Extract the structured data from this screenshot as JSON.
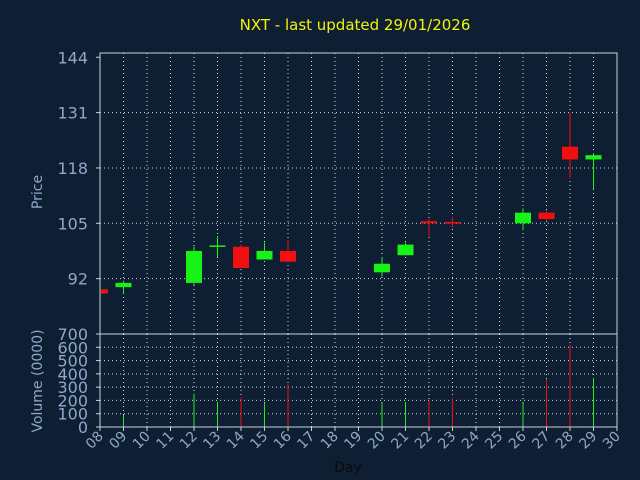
{
  "chart_data": {
    "type": "candlestick",
    "title": "NXT - last updated 29/01/2026",
    "xlabel": "Day",
    "colors": {
      "background": "#0f1f33",
      "title": "#f3f30a",
      "axis_text": "#8fa8c8",
      "xlabel": "#0a0a0a",
      "frame": "#c8d2dc",
      "grid": "#d0d8e0",
      "up": "#17f317",
      "down": "#f30f0f"
    },
    "x_ticks": [
      "08",
      "09",
      "10",
      "11",
      "12",
      "13",
      "14",
      "15",
      "16",
      "17",
      "18",
      "19",
      "20",
      "21",
      "22",
      "23",
      "24",
      "25",
      "26",
      "27",
      "28",
      "29",
      "30"
    ],
    "price_panel": {
      "ylabel": "Price",
      "ylim": [
        79,
        145
      ],
      "y_ticks": [
        92,
        105,
        118,
        131,
        144
      ],
      "grid": true,
      "candles": [
        {
          "day": 8,
          "open": 89.5,
          "close": 88.5,
          "high": 89.5,
          "low": 88.5
        },
        {
          "day": 9,
          "open": 90.0,
          "close": 91.0,
          "high": 91.5,
          "low": 88.5
        },
        {
          "day": 12,
          "open": 91.0,
          "close": 98.5,
          "high": 99.5,
          "low": 90.5
        },
        {
          "day": 13,
          "open": 99.5,
          "close": 99.8,
          "high": 102.0,
          "low": 97.0
        },
        {
          "day": 14,
          "open": 99.5,
          "close": 94.5,
          "high": 100.0,
          "low": 94.5
        },
        {
          "day": 15,
          "open": 96.5,
          "close": 98.5,
          "high": 100.5,
          "low": 96.5
        },
        {
          "day": 16,
          "open": 98.5,
          "close": 96.0,
          "high": 101.0,
          "low": 96.0
        },
        {
          "day": 20,
          "open": 93.5,
          "close": 95.5,
          "high": 97.0,
          "low": 92.5
        },
        {
          "day": 21,
          "open": 97.5,
          "close": 100.0,
          "high": 100.5,
          "low": 97.5
        },
        {
          "day": 22,
          "open": 105.5,
          "close": 105.0,
          "high": 106.0,
          "low": 102.0
        },
        {
          "day": 23,
          "open": 105.3,
          "close": 105.0,
          "high": 106.5,
          "low": 104.0
        },
        {
          "day": 26,
          "open": 105.0,
          "close": 107.5,
          "high": 108.5,
          "low": 103.5
        },
        {
          "day": 27,
          "open": 107.5,
          "close": 106.0,
          "high": 108.0,
          "low": 105.5
        },
        {
          "day": 28,
          "open": 123.0,
          "close": 120.0,
          "high": 131.0,
          "low": 115.5
        },
        {
          "day": 29,
          "open": 120.0,
          "close": 121.0,
          "high": 121.5,
          "low": 113.0
        }
      ]
    },
    "volume_panel": {
      "ylabel": "Volume (0000)",
      "ylim": [
        0,
        700
      ],
      "y_ticks": [
        0,
        100,
        200,
        300,
        400,
        500,
        600,
        700
      ],
      "grid": true,
      "bars": [
        {
          "day": 9,
          "value": 90,
          "dir": "up"
        },
        {
          "day": 12,
          "value": 250,
          "dir": "up"
        },
        {
          "day": 13,
          "value": 190,
          "dir": "up"
        },
        {
          "day": 14,
          "value": 220,
          "dir": "down"
        },
        {
          "day": 15,
          "value": 180,
          "dir": "up"
        },
        {
          "day": 16,
          "value": 320,
          "dir": "down"
        },
        {
          "day": 20,
          "value": 180,
          "dir": "up"
        },
        {
          "day": 21,
          "value": 190,
          "dir": "up"
        },
        {
          "day": 22,
          "value": 200,
          "dir": "down"
        },
        {
          "day": 23,
          "value": 220,
          "dir": "down"
        },
        {
          "day": 26,
          "value": 180,
          "dir": "up"
        },
        {
          "day": 27,
          "value": 360,
          "dir": "down"
        },
        {
          "day": 28,
          "value": 620,
          "dir": "down"
        },
        {
          "day": 29,
          "value": 370,
          "dir": "up"
        }
      ]
    }
  }
}
